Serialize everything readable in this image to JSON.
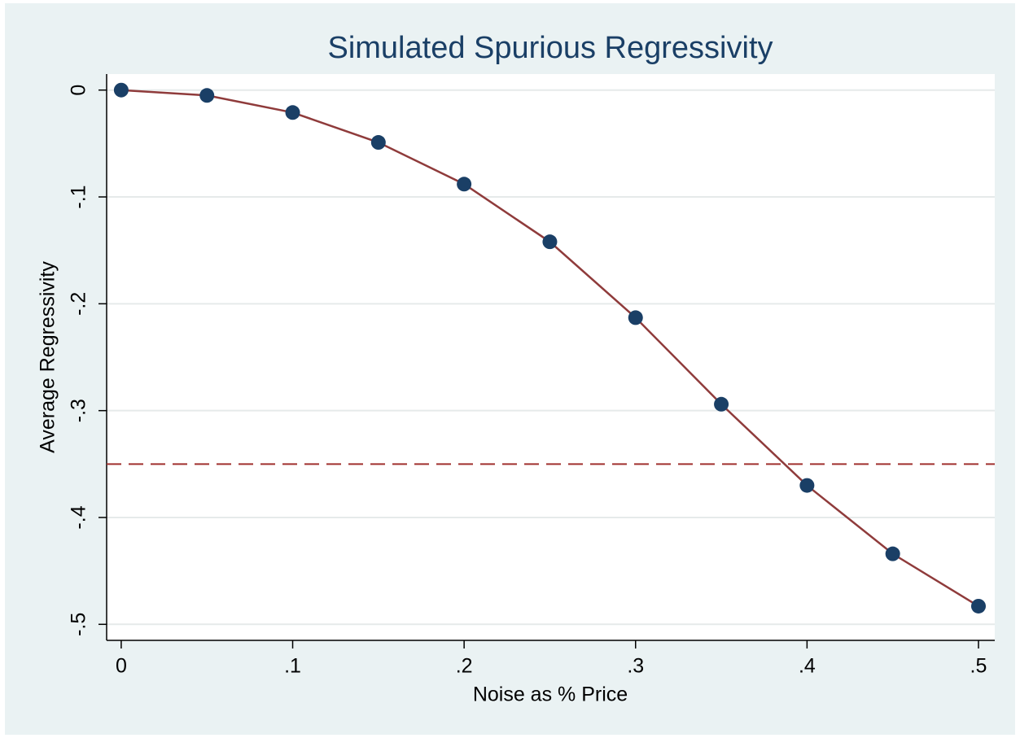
{
  "chart_data": {
    "type": "line",
    "title": "Simulated Spurious Regressivity",
    "x_label": "Noise as % Price",
    "y_label": "Average Regressivity",
    "x": [
      0,
      0.05,
      0.1,
      0.15,
      0.2,
      0.25,
      0.3,
      0.35,
      0.4,
      0.45,
      0.5
    ],
    "series": [
      {
        "line_color": "#8f3b3b",
        "color": "#1a3f66",
        "values": [
          0,
          -0.005,
          -0.021,
          -0.049,
          -0.088,
          -0.142,
          -0.213,
          -0.294,
          -0.37,
          -0.434,
          -0.483
        ]
      }
    ],
    "hline": {
      "value": -0.35,
      "color": "#a0302f",
      "dashed": true
    },
    "xlim": [
      -0.0085,
      0.5095
    ],
    "ylim": [
      -0.515,
      0.015
    ],
    "xticks": [
      0,
      {
        "value": 0.1,
        "label": ".1"
      },
      {
        "value": 0.2,
        "label": ".2"
      },
      {
        "value": 0.3,
        "label": ".3"
      },
      {
        "value": 0.4,
        "label": ".4"
      },
      {
        "value": 0.5,
        "label": ".5"
      }
    ],
    "yticks": [
      0,
      {
        "value": -0.1,
        "label": "-.1"
      },
      {
        "value": -0.2,
        "label": "-.2"
      },
      {
        "value": -0.3,
        "label": "-.3"
      },
      {
        "value": -0.4,
        "label": "-.4"
      },
      {
        "value": -0.5,
        "label": "-.5"
      }
    ],
    "grid": true
  }
}
